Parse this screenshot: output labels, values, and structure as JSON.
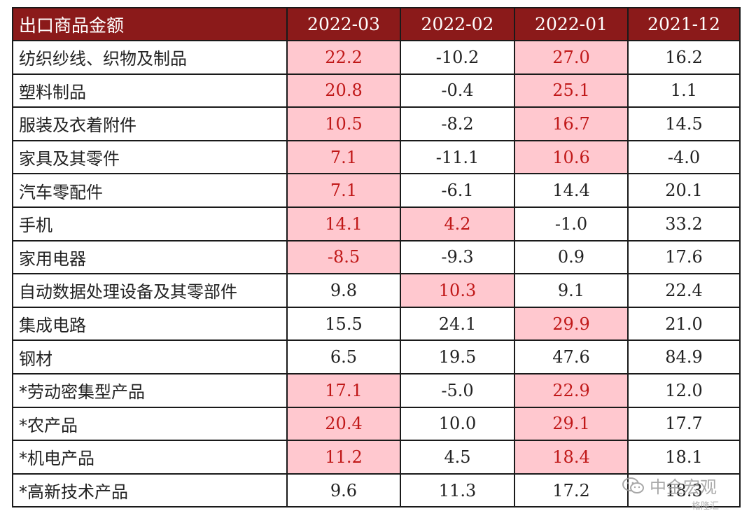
{
  "chart_data": {
    "type": "table",
    "header": [
      "出口商品金额",
      "2022-03",
      "2022-02",
      "2022-01",
      "2021-12"
    ],
    "rows": [
      {
        "label": "纺织纱线、织物及制品",
        "values": [
          "22.2",
          "-10.2",
          "27.0",
          "16.2"
        ],
        "highlight": [
          true,
          false,
          true,
          false
        ]
      },
      {
        "label": "塑料制品",
        "values": [
          "20.8",
          "-0.4",
          "25.1",
          "1.1"
        ],
        "highlight": [
          true,
          false,
          true,
          false
        ]
      },
      {
        "label": "服装及衣着附件",
        "values": [
          "10.5",
          "-8.2",
          "16.7",
          "14.5"
        ],
        "highlight": [
          true,
          false,
          true,
          false
        ]
      },
      {
        "label": "家具及其零件",
        "values": [
          "7.1",
          "-11.1",
          "10.6",
          "-4.0"
        ],
        "highlight": [
          true,
          false,
          true,
          false
        ]
      },
      {
        "label": "汽车零配件",
        "values": [
          "7.1",
          "-6.1",
          "14.4",
          "20.1"
        ],
        "highlight": [
          true,
          false,
          false,
          false
        ]
      },
      {
        "label": "手机",
        "values": [
          "14.1",
          "4.2",
          "-1.0",
          "33.2"
        ],
        "highlight": [
          true,
          true,
          false,
          false
        ]
      },
      {
        "label": "家用电器",
        "values": [
          "-8.5",
          "-9.3",
          "0.9",
          "17.6"
        ],
        "highlight": [
          true,
          false,
          false,
          false
        ]
      },
      {
        "label": "自动数据处理设备及其零部件",
        "values": [
          "9.8",
          "10.3",
          "9.1",
          "22.4"
        ],
        "highlight": [
          false,
          true,
          false,
          false
        ]
      },
      {
        "label": "集成电路",
        "values": [
          "15.5",
          "24.1",
          "29.9",
          "21.0"
        ],
        "highlight": [
          false,
          false,
          true,
          false
        ]
      },
      {
        "label": "钢材",
        "values": [
          "6.5",
          "19.5",
          "47.6",
          "84.9"
        ],
        "highlight": [
          false,
          false,
          false,
          false
        ]
      },
      {
        "label": "*劳动密集型产品",
        "values": [
          "17.1",
          "-5.0",
          "22.9",
          "12.0"
        ],
        "highlight": [
          true,
          false,
          true,
          false
        ]
      },
      {
        "label": "*农产品",
        "values": [
          "20.4",
          "10.0",
          "29.1",
          "17.7"
        ],
        "highlight": [
          true,
          false,
          true,
          false
        ]
      },
      {
        "label": "*机电产品",
        "values": [
          "11.2",
          "4.5",
          "18.4",
          "18.1"
        ],
        "highlight": [
          true,
          false,
          true,
          false
        ]
      },
      {
        "label": "*高新技术产品",
        "values": [
          "9.6",
          "11.3",
          "17.2",
          "18.3"
        ],
        "highlight": [
          false,
          false,
          false,
          false
        ]
      }
    ]
  },
  "colors": {
    "header_bg": "#8b1a1a",
    "header_text": "#ffffff",
    "highlight_bg": "#ffc8cf",
    "highlight_text": "#c01818"
  },
  "watermark": {
    "brand": "中金宏观",
    "site": "格隆汇"
  }
}
